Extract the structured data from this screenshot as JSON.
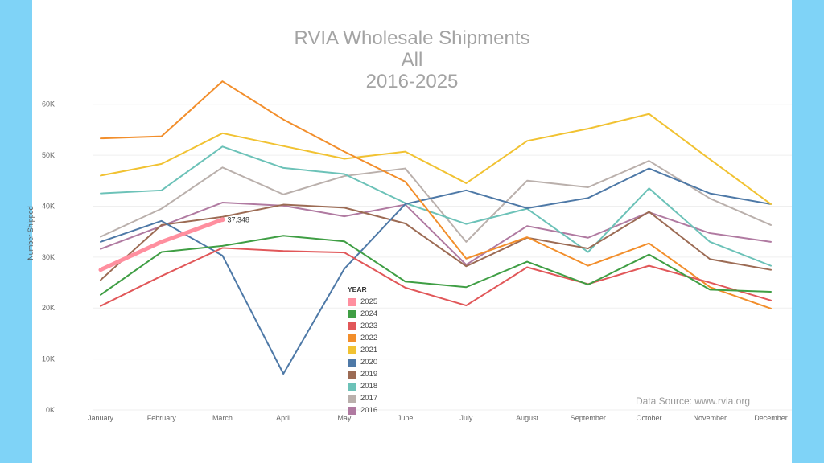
{
  "chart_data": {
    "type": "line",
    "title": [
      "RVIA Wholesale Shipments",
      "All",
      "2016-2025"
    ],
    "ylabel": "Number Shipped",
    "xlabel": "",
    "ylim": [
      0,
      65000
    ],
    "yticks": [
      0,
      10000,
      20000,
      30000,
      40000,
      50000,
      60000
    ],
    "ytick_labels": [
      "0K",
      "10K",
      "20K",
      "30K",
      "40K",
      "50K",
      "60K"
    ],
    "categories": [
      "January",
      "February",
      "March",
      "April",
      "May",
      "June",
      "July",
      "August",
      "September",
      "October",
      "November",
      "December"
    ],
    "legend_title": "YEAR",
    "legend_placement": "center",
    "grid": true,
    "series": [
      {
        "name": "2025",
        "color": "#ff8f9f",
        "values": [
          27500,
          33000,
          37348,
          null,
          null,
          null,
          null,
          null,
          null,
          null,
          null,
          null
        ],
        "end_label": "37,348"
      },
      {
        "name": "2024",
        "color": "#3f9e44",
        "values": [
          22600,
          31000,
          32200,
          34200,
          33100,
          25200,
          24100,
          29100,
          24600,
          30500,
          23600,
          23200
        ]
      },
      {
        "name": "2023",
        "color": "#e15759",
        "values": [
          20400,
          26300,
          31800,
          31200,
          30900,
          24000,
          20500,
          28000,
          24700,
          28300,
          25000,
          21500
        ]
      },
      {
        "name": "2022",
        "color": "#f28e2b",
        "values": [
          53300,
          53700,
          64500,
          57000,
          50700,
          44800,
          29700,
          33900,
          28300,
          32700,
          24100,
          19900
        ]
      },
      {
        "name": "2021",
        "color": "#f1c232",
        "values": [
          46000,
          48300,
          54300,
          51800,
          49300,
          50700,
          44500,
          52800,
          55200,
          58100,
          49200,
          40400
        ]
      },
      {
        "name": "2020",
        "color": "#4e79a7",
        "values": [
          33000,
          37100,
          30300,
          7100,
          27700,
          40400,
          43100,
          39600,
          41600,
          47400,
          42500,
          40400
        ]
      },
      {
        "name": "2019",
        "color": "#9c6b54",
        "values": [
          25500,
          36300,
          37900,
          40300,
          39700,
          36600,
          28200,
          33800,
          31700,
          38900,
          29600,
          27500
        ]
      },
      {
        "name": "2018",
        "color": "#6cc2b8",
        "values": [
          42500,
          43100,
          51700,
          47500,
          46300,
          40600,
          36500,
          39500,
          31000,
          43500,
          33000,
          28300
        ]
      },
      {
        "name": "2017",
        "color": "#bab0ac",
        "values": [
          34000,
          39500,
          47600,
          42300,
          45900,
          47400,
          33000,
          45000,
          43700,
          48900,
          41500,
          36300
        ]
      },
      {
        "name": "2016",
        "color": "#b07aa1",
        "values": [
          31600,
          36100,
          40700,
          40100,
          38000,
          40300,
          28500,
          36100,
          33800,
          38800,
          34700,
          33000
        ]
      }
    ],
    "annotation": "Data Source: www.rvia.org"
  }
}
